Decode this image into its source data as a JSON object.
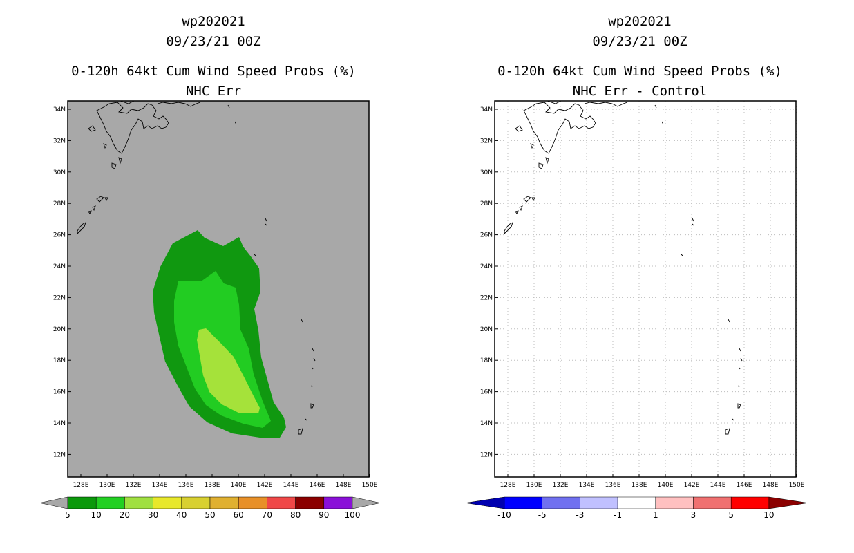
{
  "colors": {
    "map_background_left": "#a8a8a8",
    "map_background_right": "#ffffff",
    "grid": "#bdbdbd",
    "contour_5": "#109810",
    "contour_10": "#22cc22",
    "contour_20": "#a5e23a"
  },
  "left": {
    "title1": "wp202021",
    "title2": "09/23/21 00Z",
    "title3": "0-120h 64kt Cum Wind Speed Probs (%)",
    "title4": "NHC Err",
    "lat_ticks": [
      "34N",
      "32N",
      "30N",
      "28N",
      "26N",
      "24N",
      "22N",
      "20N",
      "18N",
      "16N",
      "14N",
      "12N"
    ],
    "lon_ticks": [
      "128E",
      "130E",
      "132E",
      "134E",
      "136E",
      "138E",
      "140E",
      "142E",
      "144E",
      "146E",
      "148E",
      "150E"
    ],
    "colorbar": {
      "colors": [
        "#0b990b",
        "#22d022",
        "#a0e040",
        "#e8e82a",
        "#d8d030",
        "#e0b030",
        "#e89028",
        "#f04848",
        "#8b0000",
        "#8a10d8"
      ],
      "labels": [
        "5",
        "10",
        "20",
        "30",
        "40",
        "50",
        "60",
        "70",
        "80",
        "90",
        "100"
      ]
    }
  },
  "right": {
    "title1": "wp202021",
    "title2": "09/23/21 00Z",
    "title3": "0-120h 64kt Cum Wind Speed Probs (%)",
    "title4": "NHC Err - Control",
    "lat_ticks": [
      "34N",
      "32N",
      "30N",
      "28N",
      "26N",
      "24N",
      "22N",
      "20N",
      "18N",
      "16N",
      "14N",
      "12N"
    ],
    "lon_ticks": [
      "128E",
      "130E",
      "132E",
      "134E",
      "136E",
      "138E",
      "140E",
      "142E",
      "144E",
      "146E",
      "148E",
      "150E"
    ],
    "colorbar": {
      "colors": [
        "#0000b0",
        "#0000ff",
        "#7070f0",
        "#c0c0ff",
        "#ffffff",
        "#ffc0c0",
        "#f07070",
        "#ff0000",
        "#8b0000"
      ],
      "labels": [
        "-10",
        "-5",
        "-3",
        "-1",
        "1",
        "3",
        "5",
        "10"
      ]
    }
  }
}
